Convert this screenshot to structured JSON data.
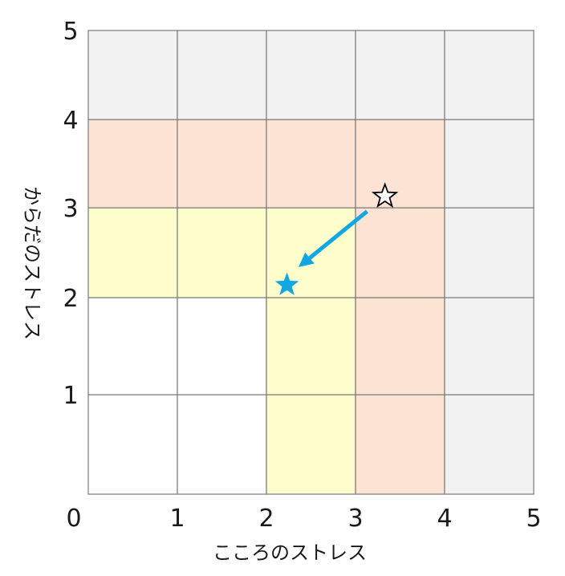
{
  "chart_data": {
    "type": "scatter",
    "xlabel": "こころのストレス",
    "ylabel": "からだのストレス",
    "xlim": [
      0,
      5
    ],
    "ylim": [
      0,
      5
    ],
    "x_ticks": [
      "0",
      "1",
      "2",
      "3",
      "4",
      "5"
    ],
    "y_ticks": [
      "1",
      "2",
      "3",
      "4",
      "5"
    ],
    "grid": true,
    "zone_colors": {
      "gray": "#f2f2f2",
      "pink": "#fde3d4",
      "yellow": "#fefecc",
      "white": "#ffffff"
    },
    "cells": [
      [
        "white",
        "white",
        "yellow",
        "pink",
        "gray"
      ],
      [
        "white",
        "white",
        "yellow",
        "pink",
        "gray"
      ],
      [
        "yellow",
        "yellow",
        "yellow",
        "pink",
        "gray"
      ],
      [
        "pink",
        "pink",
        "pink",
        "pink",
        "gray"
      ],
      [
        "gray",
        "gray",
        "gray",
        "gray",
        "gray"
      ]
    ],
    "points": [
      {
        "x": 3.33,
        "y": 3.13,
        "marker": "star-outline",
        "color": "#000000"
      },
      {
        "x": 2.23,
        "y": 2.14,
        "marker": "star-filled",
        "color": "#12a7e3"
      }
    ],
    "arrow": {
      "from": [
        3.13,
        2.96
      ],
      "to": [
        2.36,
        2.34
      ],
      "color": "#12a7e3"
    }
  }
}
